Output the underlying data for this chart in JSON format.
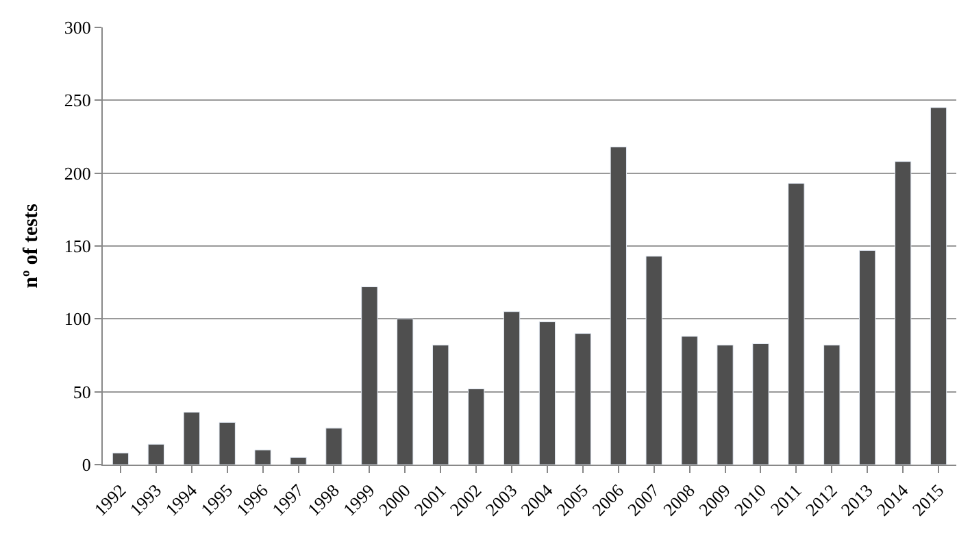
{
  "chart_data": {
    "type": "bar",
    "ylabel": "nº of tests",
    "categories": [
      "1992",
      "1993",
      "1994",
      "1995",
      "1996",
      "1997",
      "1998",
      "1999",
      "2000",
      "2001",
      "2002",
      "2003",
      "2004",
      "2005",
      "2006",
      "2007",
      "2008",
      "2009",
      "2010",
      "2011",
      "2012",
      "2013",
      "2014",
      "2015"
    ],
    "values": [
      8,
      14,
      36,
      29,
      10,
      5,
      25,
      122,
      100,
      82,
      52,
      105,
      98,
      90,
      218,
      143,
      88,
      82,
      83,
      193,
      82,
      147,
      208,
      245
    ],
    "color": "#4f4f4f",
    "ylim": [
      0,
      300
    ],
    "yticks": [
      0,
      50,
      100,
      150,
      200,
      250,
      300
    ],
    "grid": "y"
  }
}
